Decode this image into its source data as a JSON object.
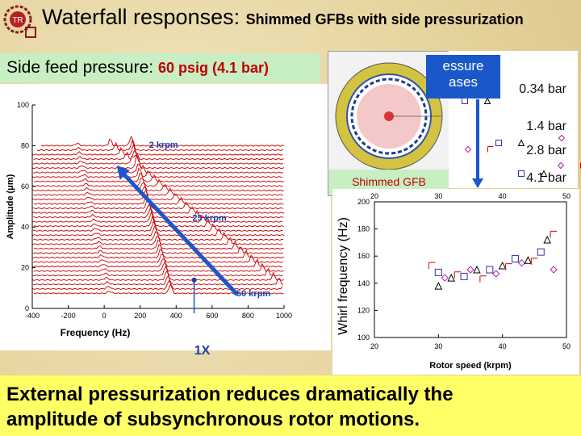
{
  "header": {
    "title": "Waterfall responses:",
    "subtitle": "Shimmed GFBs with side pressurization"
  },
  "feed": {
    "label": "Side feed pressure:",
    "value": "60 psig (4.1 bar)"
  },
  "gfb_caption": "Shimmed GFB",
  "pressure_box": {
    "line1": "essure",
    "line2": "ases"
  },
  "footer": {
    "line1": "External pressurization reduces dramatically the",
    "line2": "amplitude of subsynchronous rotor motions."
  },
  "colors": {
    "accent_red": "#d00000",
    "arrow_blue": "#1a57c8",
    "bar_yellow": "#ffff66",
    "feed_green": "#c8efc4"
  },
  "chart_data": [
    {
      "type": "line",
      "name": "waterfall",
      "xlabel": "Frequency (Hz)",
      "ylabel": "Amplitude (μm)",
      "xlim": [
        -400,
        1000
      ],
      "ylim": [
        0,
        100
      ],
      "x_ticks": [
        "-400",
        "-200",
        "0",
        "200",
        "400",
        "600",
        "800",
        "1000"
      ],
      "y_ticks": [
        "0",
        "20",
        "40",
        "60",
        "80",
        "100"
      ],
      "annotations": [
        {
          "text": "2 krpm",
          "x": 330,
          "y": 79
        },
        {
          "text": "25 krpm",
          "x": 585,
          "y": 43
        },
        {
          "text": "50 krpm",
          "x": 830,
          "y": 6
        },
        {
          "text": "1X",
          "x": 500,
          "y": -13
        }
      ],
      "speed_range_krpm": [
        2,
        50
      ]
    },
    {
      "type": "scatter",
      "name": "whirl frequency",
      "xlabel": "Rotor speed (krpm)",
      "ylabel": "Whirl frequency (Hz)",
      "xlim": [
        20,
        50
      ],
      "ylim": [
        100,
        200
      ],
      "x_ticks": [
        "20",
        "30",
        "40",
        "50"
      ],
      "y_ticks": [
        "100",
        "120",
        "140",
        "160",
        "180",
        "200"
      ],
      "series": [
        {
          "name": "0.34 bar",
          "marker": "square",
          "points": [
            [
              30,
              148
            ],
            [
              34,
              145
            ],
            [
              38,
              150
            ],
            [
              42,
              158
            ],
            [
              46,
              163
            ]
          ]
        },
        {
          "name": "1.4 bar",
          "marker": "diamond",
          "points": [
            [
              31,
              144
            ],
            [
              35,
              150
            ],
            [
              39,
              147
            ],
            [
              43,
              155
            ],
            [
              48,
              150
            ]
          ]
        },
        {
          "name": "2.8 bar",
          "marker": "triangle",
          "points": [
            [
              30,
              138
            ],
            [
              32,
              144
            ],
            [
              36,
              150
            ],
            [
              40,
              153
            ],
            [
              44,
              157
            ],
            [
              47,
              172
            ]
          ]
        },
        {
          "name": "4.1 bar",
          "marker": "bracket",
          "points": [
            [
              29,
              153
            ],
            [
              33,
              146
            ],
            [
              37,
              143
            ],
            [
              41,
              152
            ],
            [
              45,
              156
            ],
            [
              48,
              176
            ]
          ]
        }
      ]
    },
    {
      "type": "scatter",
      "name": "pressure trend",
      "x_ticks": [
        "20",
        "40",
        "50"
      ],
      "legend": [
        "0.34 bar",
        "1.4 bar",
        "2.8 bar",
        "4.1 bar"
      ]
    }
  ]
}
